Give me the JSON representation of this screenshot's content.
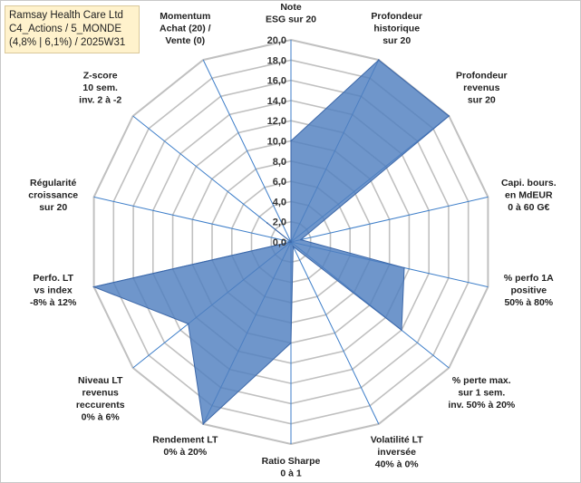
{
  "header": {
    "line1": "Ramsay Health Care Ltd",
    "line2": "C4_Actions / 5_MONDE",
    "line3": "(4,8% | 6,1%) / 2025W31"
  },
  "chart_data": {
    "type": "radar",
    "r_min": 0,
    "r_max": 20,
    "tick_step": 2,
    "tick_labels": [
      "0,0",
      "2,0",
      "4,0",
      "6,0",
      "8,0",
      "10,0",
      "12,0",
      "14,0",
      "16,0",
      "18,0",
      "20,0"
    ],
    "axes": [
      [
        "Note",
        "ESG sur 20"
      ],
      [
        "Profondeur",
        "historique",
        "sur 20"
      ],
      [
        "Profondeur",
        "revenus",
        "sur 20"
      ],
      [
        "Capi. bours.",
        "en MdEUR",
        "0 à 60 G€"
      ],
      [
        "% perfo 1A",
        "positive",
        "50% à 80%"
      ],
      [
        "% perte max.",
        "sur 1 sem.",
        "inv. 50% à 20%"
      ],
      [
        "Volatilité LT",
        "inversée",
        "40% à 0%"
      ],
      [
        "Ratio Sharpe",
        "0 à 1"
      ],
      [
        "Rendement LT",
        "0% à 20%"
      ],
      [
        "Niveau LT",
        "revenus",
        "reccurents",
        "0% à 6%"
      ],
      [
        "Perfo. LT",
        "vs index",
        "-8% à 12%"
      ],
      [
        "Régularité",
        "croissance",
        "sur 20"
      ],
      [
        "Z-score",
        "10 sem.",
        "inv. 2 à -2"
      ],
      [
        "Momentum",
        "Achat (20) /",
        "Vente (0)"
      ]
    ],
    "values": [
      10,
      20,
      20,
      1,
      11.5,
      14,
      0.5,
      10,
      20,
      13,
      20,
      0,
      3,
      0
    ],
    "grid": true,
    "colors": {
      "fill": "#4f7fbf",
      "stroke": "#3c67a8",
      "grid": "#c0c0c0",
      "spoke": "#3d7ec9"
    }
  }
}
